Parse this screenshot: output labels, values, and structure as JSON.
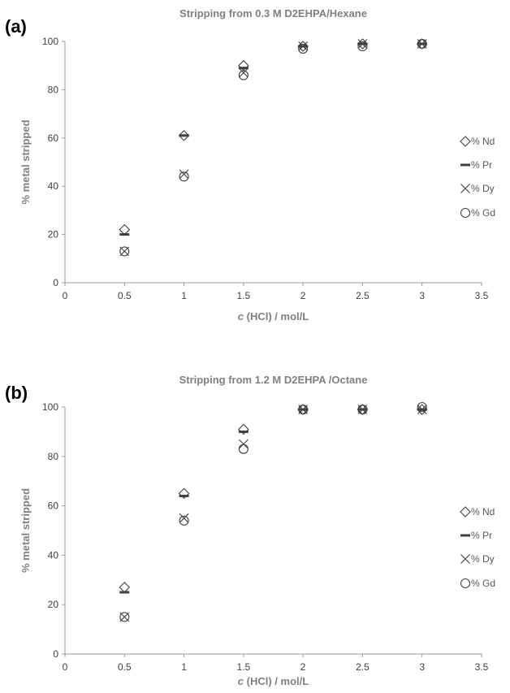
{
  "chart_data": [
    {
      "type": "scatter",
      "panel_label": "(a)",
      "title": "Stripping from 0.3 M D2EHPA/Hexane",
      "xlabel_prefix": "c",
      "xlabel_rest": " (HCl) / mol/L",
      "ylabel": "% metal stripped",
      "xlim": [
        0,
        3.5
      ],
      "ylim": [
        0,
        100
      ],
      "x_ticks": [
        "0",
        "0.5",
        "1",
        "1.5",
        "2",
        "2.5",
        "3",
        "3.5"
      ],
      "y_ticks": [
        "0",
        "20",
        "40",
        "60",
        "80",
        "100"
      ],
      "legend_position": "right",
      "x": [
        0.5,
        1,
        1.5,
        2,
        2.5,
        3
      ],
      "series": [
        {
          "name": "% Nd",
          "marker": "diamond",
          "values": [
            22,
            61,
            90,
            98,
            99,
            99
          ]
        },
        {
          "name": "% Pr",
          "marker": "dash",
          "values": [
            20,
            61,
            89,
            98,
            99,
            99
          ]
        },
        {
          "name": "% Dy",
          "marker": "x",
          "values": [
            13,
            45,
            87,
            98,
            99,
            99
          ]
        },
        {
          "name": "% Gd",
          "marker": "circle",
          "values": [
            13,
            44,
            86,
            97,
            98,
            99
          ]
        }
      ]
    },
    {
      "type": "scatter",
      "panel_label": "(b)",
      "title": "Stripping from 1.2 M D2EHPA /Octane",
      "xlabel_prefix": "c",
      "xlabel_rest": " (HCl) / mol/L",
      "ylabel": "% metal stripped",
      "xlim": [
        0,
        3.5
      ],
      "ylim": [
        0,
        100
      ],
      "x_ticks": [
        "0",
        "0.5",
        "1",
        "1.5",
        "2",
        "2.5",
        "3",
        "3.5"
      ],
      "y_ticks": [
        "0",
        "20",
        "40",
        "60",
        "80",
        "100"
      ],
      "legend_position": "right",
      "x": [
        0.5,
        1,
        1.5,
        2,
        2.5,
        3
      ],
      "series": [
        {
          "name": "% Nd",
          "marker": "diamond",
          "values": [
            27,
            65,
            91,
            99,
            99,
            99
          ]
        },
        {
          "name": "% Pr",
          "marker": "dash",
          "values": [
            25,
            64,
            90,
            99,
            99,
            99
          ]
        },
        {
          "name": "% Dy",
          "marker": "x",
          "values": [
            15,
            55,
            85,
            99,
            99,
            99
          ]
        },
        {
          "name": "% Gd",
          "marker": "circle",
          "values": [
            15,
            54,
            83,
            99,
            99,
            100
          ]
        }
      ]
    }
  ]
}
